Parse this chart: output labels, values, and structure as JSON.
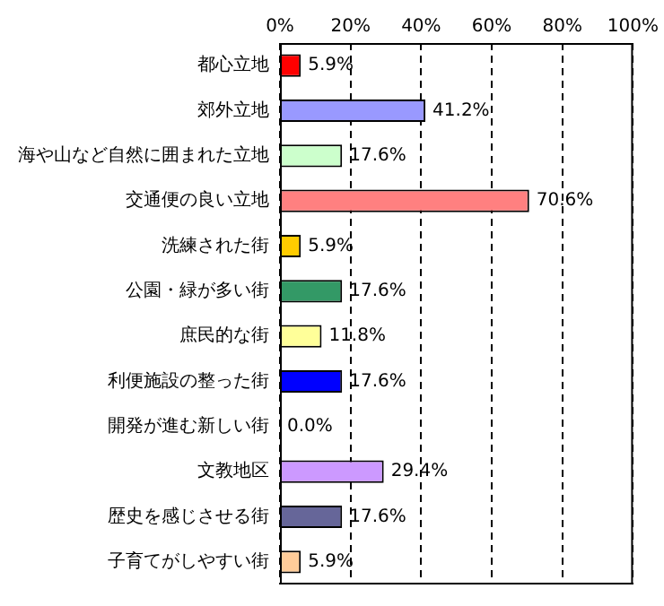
{
  "chart_data": {
    "type": "bar",
    "orientation": "horizontal",
    "categories": [
      "都心立地",
      "郊外立地",
      "海や山など自然に囲まれた立地",
      "交通便の良い立地",
      "洗練された街",
      "公園・緑が多い街",
      "庶民的な街",
      "利便施設の整った街",
      "開発が進む新しい街",
      "文教地区",
      "歴史を感じさせる街",
      "子育てがしやすい街"
    ],
    "values": [
      5.9,
      41.2,
      17.6,
      70.6,
      5.9,
      17.6,
      11.8,
      17.6,
      0.0,
      29.4,
      17.6,
      5.9
    ],
    "colors": [
      "#ff0000",
      "#9999ff",
      "#ccffcc",
      "#ff8080",
      "#ffcc00",
      "#339966",
      "#ffff99",
      "#0000ff",
      "#ffffff",
      "#cc99ff",
      "#666699",
      "#ffcc99"
    ],
    "value_labels": [
      "5.9%",
      "41.2%",
      "17.6%",
      "70.6%",
      "5.9%",
      "17.6%",
      "11.8%",
      "17.6%",
      "0.0%",
      "29.4%",
      "17.6%",
      "5.9%"
    ],
    "xlim": [
      0,
      100
    ],
    "xticks": [
      {
        "value": 0,
        "label": "0%"
      },
      {
        "value": 20,
        "label": "20%"
      },
      {
        "value": 40,
        "label": "40%"
      },
      {
        "value": 60,
        "label": "60%"
      },
      {
        "value": 80,
        "label": "80%"
      },
      {
        "value": 100,
        "label": "100%"
      }
    ],
    "grid": "x",
    "legend": false
  }
}
